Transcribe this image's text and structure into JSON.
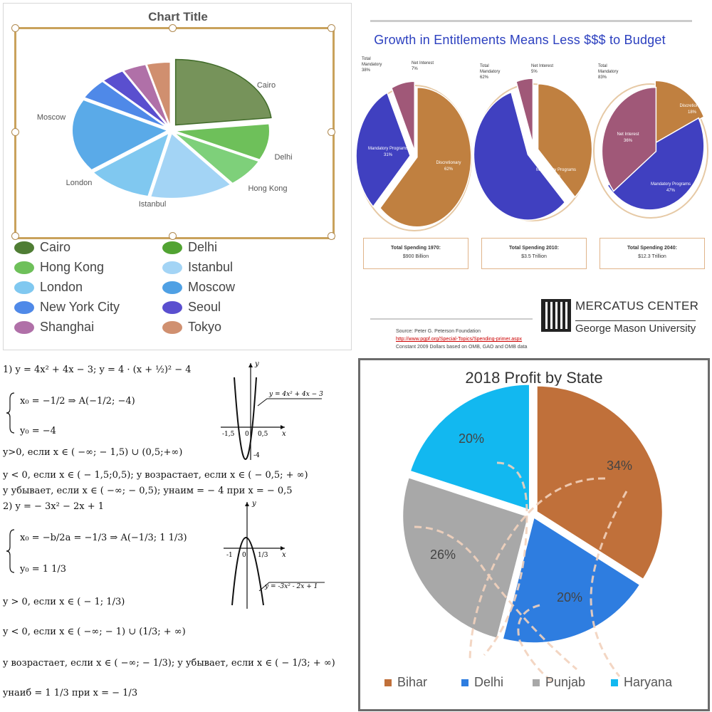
{
  "panel1": {
    "chart_data": {
      "type": "pie",
      "title": "Chart Title",
      "slices": [
        {
          "label": "Cairo",
          "value": 23,
          "color": "#76935a"
        },
        {
          "label": "Delhi",
          "value": 9,
          "color": "#6ec05a"
        },
        {
          "label": "Hong Kong",
          "value": 7,
          "color": "#7ed07a"
        },
        {
          "label": "Istanbul",
          "value": 14,
          "color": "#a3d4f5"
        },
        {
          "label": "London",
          "value": 11,
          "color": "#80c8f0"
        },
        {
          "label": "Moscow",
          "value": 18,
          "color": "#5aaae8"
        },
        {
          "label": "New York City",
          "value": 5,
          "color": "#4f89e8"
        },
        {
          "label": "Seoul",
          "value": 4,
          "color": "#5a4fcf"
        },
        {
          "label": "Shanghai",
          "value": 4,
          "color": "#b070a8"
        },
        {
          "label": "Tokyo",
          "value": 4,
          "color": "#d08f6f"
        }
      ],
      "legend_position": "bottom",
      "legend_colors": {
        "Cairo": "#4f7d34",
        "Delhi": "#51a332",
        "Hong Kong": "#6ec05a",
        "Istanbul": "#a3d4f5",
        "London": "#80c8f0",
        "Moscow": "#4fa0e4",
        "New York City": "#4f89e8",
        "Seoul": "#5a4fcf",
        "Shanghai": "#b070a8",
        "Tokyo": "#d09070"
      }
    }
  },
  "panel2": {
    "title": "Growth in Entitlements Means Less $$$ to Budget",
    "chart_data": [
      {
        "type": "pie",
        "slices": [
          {
            "label": "Discretionary",
            "value": 62,
            "color": "#c08040"
          },
          {
            "label": "Mandatory Programs",
            "value": 31,
            "color": "#4040c0"
          },
          {
            "label": "Net Interest",
            "value": 7,
            "color": "#a05878"
          }
        ],
        "callouts": [
          "Total Mandatory 38%",
          "Net Interest 7%"
        ],
        "slice_labels": [
          "Discretionary 62%",
          "Mandatory Programs 31%"
        ]
      },
      {
        "type": "pie",
        "slices": [
          {
            "label": "Discretionary",
            "value": 38,
            "color": "#c08040"
          },
          {
            "label": "Mandatory Programs",
            "value": 57,
            "color": "#4040c0"
          },
          {
            "label": "Net Interest",
            "value": 5,
            "color": "#a05878"
          }
        ],
        "callouts": [
          "Total Mandatory 62%",
          "Net Interest 5%"
        ],
        "slice_labels": [
          "Discretionary 38%",
          "Mandatory Programs 57%"
        ]
      },
      {
        "type": "pie",
        "slices": [
          {
            "label": "Discretionary",
            "value": 18,
            "color": "#c08040"
          },
          {
            "label": "Mandatory Programs",
            "value": 47,
            "color": "#4040c0"
          },
          {
            "label": "Net Interest",
            "value": 36,
            "color": "#a05878"
          }
        ],
        "callouts": [
          "Total Mandatory 83%"
        ],
        "slice_labels": [
          "Discretionary 18%",
          "Net Interest 36%",
          "Mandatory Programs 47%"
        ]
      }
    ],
    "boxes": [
      {
        "l1": "Total Spending 1970:",
        "l2": "$900 Billion"
      },
      {
        "l1": "Total Spending 2010:",
        "l2": "$3.5 Trillion"
      },
      {
        "l1": "Total Spending 2040:",
        "l2": "$12.3 Trillion"
      }
    ],
    "brand_line1": "MERCATUS CENTER",
    "brand_line2": "George Mason University",
    "source1": "Source: Peter G. Peterson Foundation",
    "source2": "http://www.pgpf.org/Special-Topics/Spending-primer.aspx",
    "source3": "Constant 2009 Dollars based on OMB, GAO and OMB data"
  },
  "panel3": {
    "lines": [
      "1) y = 4x² + 4x − 3; y = 4 · (x + ½)² − 4",
      "x₀ = −1/2  ⇒  A(−1/2; −4)",
      "y₀ = −4",
      "y>0, если x ∈ ( −∞; − 1,5) ∪ (0,5;+∞)",
      "y < 0, если x ∈ ( − 1,5;0,5); y возрастает, если x ∈ ( − 0,5; + ∞)",
      "y убывает, если x ∈ ( −∞; − 0,5); yнаим = − 4 при x = − 0,5",
      "2) y = − 3x² − 2x + 1",
      "x₀ = −b/2a = −1/3  ⇒  A(−1/3; 1 1/3)",
      "y₀ = 1 1/3",
      "y > 0, если x ∈ ( − 1; 1/3)",
      "y < 0, если x ∈ ( −∞; − 1) ∪ (1/3; + ∞)",
      "y возрастает, если x ∈ ( −∞; − 1/3); y убывает, если x ∈ ( − 1/3; + ∞)",
      "yнаиб = 1 1/3  при x = − 1/3"
    ],
    "graph1": {
      "label": "y = 4x² + 4x − 3",
      "ticks": [
        "-1,5",
        "0",
        "0,5",
        "-4"
      ],
      "axis_x": "x",
      "axis_y": "y"
    },
    "graph2": {
      "label": "y = -3x² - 2x + 1",
      "ticks": [
        "-1",
        "0",
        "1/3"
      ],
      "axis_x": "x",
      "axis_y": "y"
    }
  },
  "panel4": {
    "chart_data": {
      "type": "pie",
      "title": "2018 Profit by State",
      "slices": [
        {
          "label": "Bihar",
          "value": 34,
          "color": "#c0703a",
          "text": "34%"
        },
        {
          "label": "Delhi",
          "value": 20,
          "color": "#2e7de0",
          "text": "20%"
        },
        {
          "label": "Punjab",
          "value": 26,
          "color": "#a8a8a8",
          "text": "26%"
        },
        {
          "label": "Haryana",
          "value": 20,
          "color": "#12b8f0",
          "text": "20%"
        }
      ],
      "legend_position": "bottom"
    }
  }
}
